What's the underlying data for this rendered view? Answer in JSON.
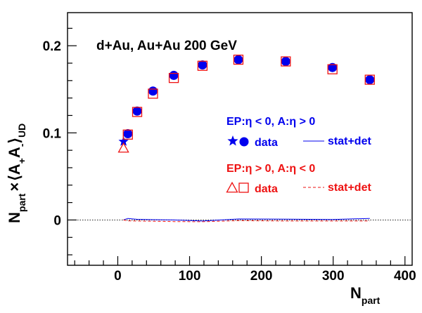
{
  "chart_data": {
    "type": "scatter",
    "title": "d+Au, Au+Au 200 GeV",
    "xlabel_main": "N",
    "xlabel_sub": "part",
    "ylabel": {
      "n": "N",
      "part": "part",
      "times": "×",
      "lang": "⟨",
      "a1": "A",
      "plus": "+",
      "a2": "A",
      "minus": "-",
      "rang": "⟩",
      "ud": "UD"
    },
    "xlim": [
      -70,
      410
    ],
    "ylim": [
      -0.052,
      0.238
    ],
    "x_ticks": [
      0,
      100,
      200,
      300,
      400
    ],
    "y_ticks": [
      0,
      0.1,
      0.2
    ],
    "x_tick_labels": [
      "0",
      "100",
      "200",
      "300",
      "400"
    ],
    "y_tick_labels": [
      "0",
      "0.1",
      "0.2"
    ],
    "colors": {
      "blue": "#0000ee",
      "red": "#ee1111",
      "axis": "#000000"
    },
    "series": [
      {
        "color": "#0000ee",
        "marker": "circle",
        "x": [
          14,
          27,
          49,
          78,
          118,
          168,
          234,
          299,
          351
        ],
        "y": [
          0.099,
          0.125,
          0.148,
          0.166,
          0.178,
          0.184,
          0.182,
          0.175,
          0.161
        ]
      },
      {
        "color": "#0000ee",
        "marker": "star",
        "x": [
          8
        ],
        "y": [
          0.09
        ]
      },
      {
        "color": "#ee1111",
        "marker": "open-square",
        "x": [
          14,
          27,
          49,
          78,
          118,
          168,
          234,
          299,
          351
        ],
        "y": [
          0.098,
          0.124,
          0.145,
          0.163,
          0.177,
          0.184,
          0.182,
          0.173,
          0.161
        ]
      },
      {
        "color": "#ee1111",
        "marker": "open-triangle",
        "x": [
          8
        ],
        "y": [
          0.083
        ]
      },
      {
        "color": "#0000ee",
        "line": "solid",
        "x": [
          8,
          14,
          27,
          49,
          78,
          118,
          168,
          234,
          299,
          351
        ],
        "y": [
          0.0,
          0.0018,
          0.0008,
          0.0004,
          0.0,
          -0.0012,
          0.0012,
          0.001,
          0.0006,
          0.0018
        ]
      },
      {
        "color": "#ee1111",
        "line": "dashed",
        "x": [
          8,
          14,
          27,
          49,
          78,
          118,
          168,
          234,
          299,
          351
        ],
        "y": [
          0.0,
          -0.001,
          -0.0012,
          -0.0014,
          -0.0018,
          -0.002,
          -0.0008,
          -0.0012,
          -0.0012,
          -0.0012
        ]
      }
    ],
    "zero_line": {
      "y": 0,
      "style": "dotted"
    },
    "legend": {
      "placement": "right",
      "blue_header": "EP:η < 0, A:η > 0",
      "blue_data": "data",
      "blue_band": "stat+det",
      "red_header": "EP:η > 0, A:η < 0",
      "red_data": "data",
      "red_band": "stat+det"
    }
  }
}
